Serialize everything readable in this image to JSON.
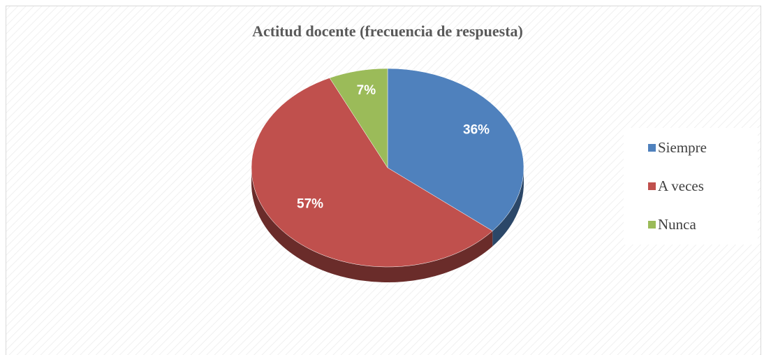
{
  "chart_data": {
    "type": "pie",
    "title": "Actitud docente (frecuencia de respuesta)",
    "categories": [
      "Siempre",
      "A veces",
      "Nunca"
    ],
    "values": [
      36,
      57,
      7
    ],
    "value_labels": [
      "36%",
      "57%",
      "7%"
    ],
    "colors": [
      "#4f81bd",
      "#c0504d",
      "#9bbb59"
    ],
    "legend": "right"
  }
}
